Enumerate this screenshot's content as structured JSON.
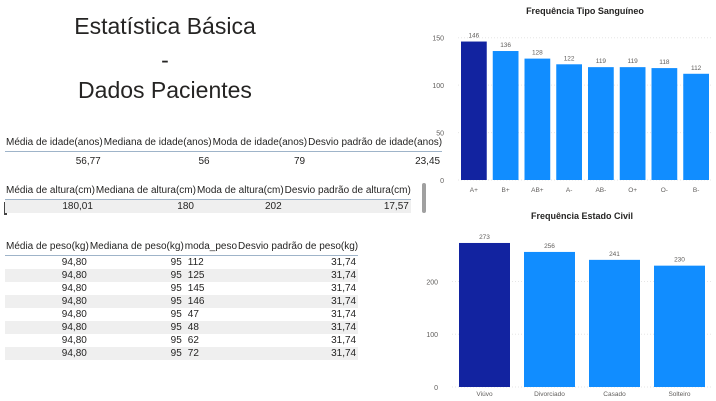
{
  "title": {
    "line1": "Estatística Básica",
    "line2": "-",
    "line3": "Dados Pacientes"
  },
  "table_idade": {
    "headers": [
      "Média de idade(anos)",
      "Mediana de idade(anos)",
      "Moda de idade(anos)",
      "Desvio padrão de idade(anos)"
    ],
    "rows": [
      [
        "56,77",
        "56",
        "79",
        "23,45"
      ]
    ]
  },
  "table_altura": {
    "headers": [
      "Média de altura(cm)",
      "Mediana de altura(cm)",
      "Moda de altura(cm)",
      "Desvio padrão de altura(cm)"
    ],
    "rows": [
      [
        "180,01",
        "180",
        "202",
        "17,57"
      ]
    ]
  },
  "table_peso": {
    "headers": [
      "Média de peso(kg)",
      "Mediana de peso(kg)",
      "moda_peso",
      "Desvio padrão de peso(kg)"
    ],
    "rows": [
      [
        "94,80",
        "95",
        "112",
        "31,74"
      ],
      [
        "94,80",
        "95",
        "125",
        "31,74"
      ],
      [
        "94,80",
        "95",
        "145",
        "31,74"
      ],
      [
        "94,80",
        "95",
        "146",
        "31,74"
      ],
      [
        "94,80",
        "95",
        "47",
        "31,74"
      ],
      [
        "94,80",
        "95",
        "48",
        "31,74"
      ],
      [
        "94,80",
        "95",
        "62",
        "31,74"
      ],
      [
        "94,80",
        "95",
        "72",
        "31,74"
      ]
    ]
  },
  "colors": {
    "highlight": "#1223a0",
    "bar": "#118dff",
    "grid": "#e6e6e6"
  },
  "chart_data": [
    {
      "type": "bar",
      "title": "Frequência Tipo Sanguíneo",
      "categories": [
        "A+",
        "B+",
        "AB+",
        "A-",
        "AB-",
        "O+",
        "O-",
        "B-"
      ],
      "values": [
        146,
        136,
        128,
        122,
        119,
        119,
        118,
        112
      ],
      "yticks": [
        0,
        50,
        100,
        150
      ],
      "ylim": [
        0,
        155
      ],
      "highlight_index": 0,
      "grid": true
    },
    {
      "type": "bar",
      "title": "Frequência Estado Civil",
      "categories": [
        "Viúvo",
        "Divorciado",
        "Casado",
        "Solteiro"
      ],
      "values": [
        273,
        256,
        241,
        230
      ],
      "yticks": [
        0,
        100,
        200
      ],
      "ylim": [
        0,
        290
      ],
      "highlight_index": 0,
      "grid": true
    }
  ]
}
